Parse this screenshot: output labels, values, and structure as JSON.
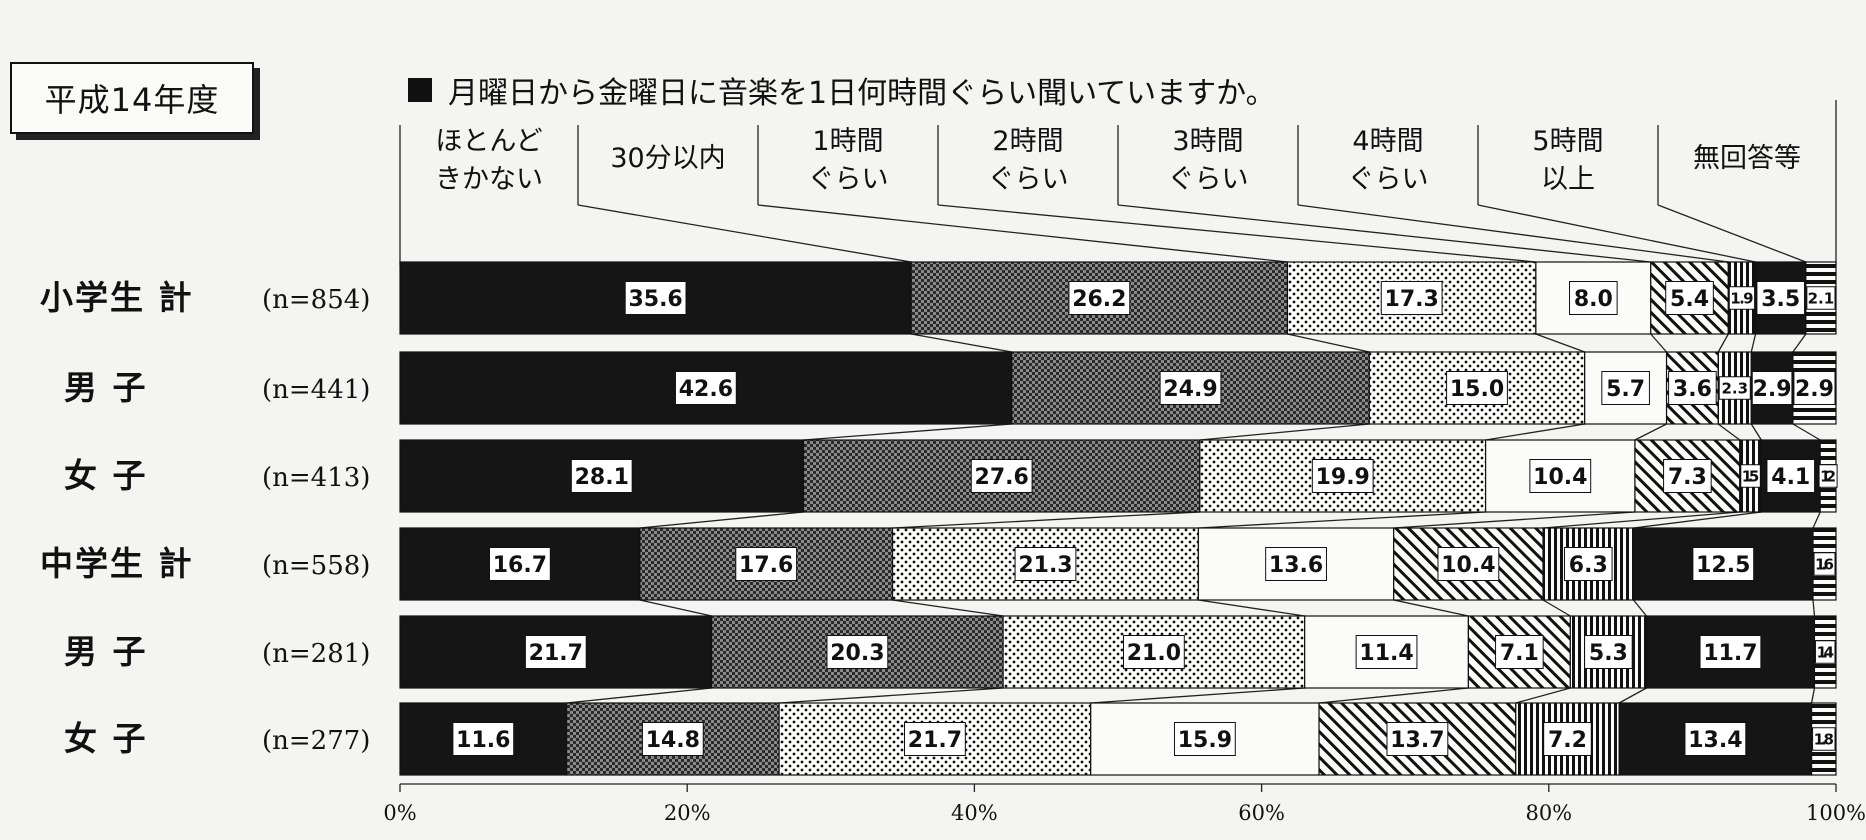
{
  "header": {
    "year_label": "平成14年度",
    "title": "月曜日から金曜日に音楽を1日何時間ぐらい聞いていますか。"
  },
  "chart_data": {
    "type": "bar",
    "orientation": "horizontal-stacked-100",
    "title": "月曜日から金曜日に音楽を1日何時間ぐらい聞いていますか。",
    "categories": [
      {
        "label": "小学生 計",
        "n": "(n=854)"
      },
      {
        "label": "男 子",
        "n": "(n=441)"
      },
      {
        "label": "女 子",
        "n": "(n=413)"
      },
      {
        "label": "中学生 計",
        "n": "(n=558)"
      },
      {
        "label": "男 子",
        "n": "(n=281)"
      },
      {
        "label": "女 子",
        "n": "(n=277)"
      }
    ],
    "series": [
      {
        "name": "ほとんどきかない",
        "name_lines": [
          "ほとんど",
          "きかない"
        ],
        "pattern": "solid-black",
        "values": [
          35.6,
          42.6,
          28.1,
          16.7,
          21.7,
          11.6
        ]
      },
      {
        "name": "30分以内",
        "name_lines": [
          "30分以内"
        ],
        "pattern": "checker",
        "values": [
          26.2,
          24.9,
          27.6,
          17.6,
          20.3,
          14.8
        ]
      },
      {
        "name": "1時間ぐらい",
        "name_lines": [
          "1時間",
          "ぐらい"
        ],
        "pattern": "dots",
        "values": [
          17.3,
          15.0,
          19.9,
          21.3,
          21.0,
          21.7
        ]
      },
      {
        "name": "2時間ぐらい",
        "name_lines": [
          "2時間",
          "ぐらい"
        ],
        "pattern": "white",
        "values": [
          8.0,
          5.7,
          10.4,
          13.6,
          11.4,
          15.9
        ]
      },
      {
        "name": "3時間ぐらい",
        "name_lines": [
          "3時間",
          "ぐらい"
        ],
        "pattern": "diagonal",
        "values": [
          5.4,
          3.6,
          7.3,
          10.4,
          7.1,
          13.7
        ]
      },
      {
        "name": "4時間ぐらい",
        "name_lines": [
          "4時間",
          "ぐらい"
        ],
        "pattern": "vertical",
        "values": [
          1.9,
          2.3,
          1.5,
          6.3,
          5.3,
          7.2
        ]
      },
      {
        "name": "5時間以上",
        "name_lines": [
          "5時間",
          "以上"
        ],
        "pattern": "solid-black",
        "values": [
          3.5,
          2.9,
          4.1,
          12.5,
          11.7,
          13.4
        ]
      },
      {
        "name": "無回答等",
        "name_lines": [
          "無回答等"
        ],
        "pattern": "horizontal",
        "values": [
          2.1,
          2.9,
          1.2,
          1.6,
          1.4,
          1.8
        ]
      }
    ],
    "x_ticks": [
      "0%",
      "20%",
      "40%",
      "60%",
      "80%",
      "100%"
    ],
    "xlim": [
      0,
      100
    ],
    "legend": "top, connected by lines to first bar",
    "grid": false
  }
}
